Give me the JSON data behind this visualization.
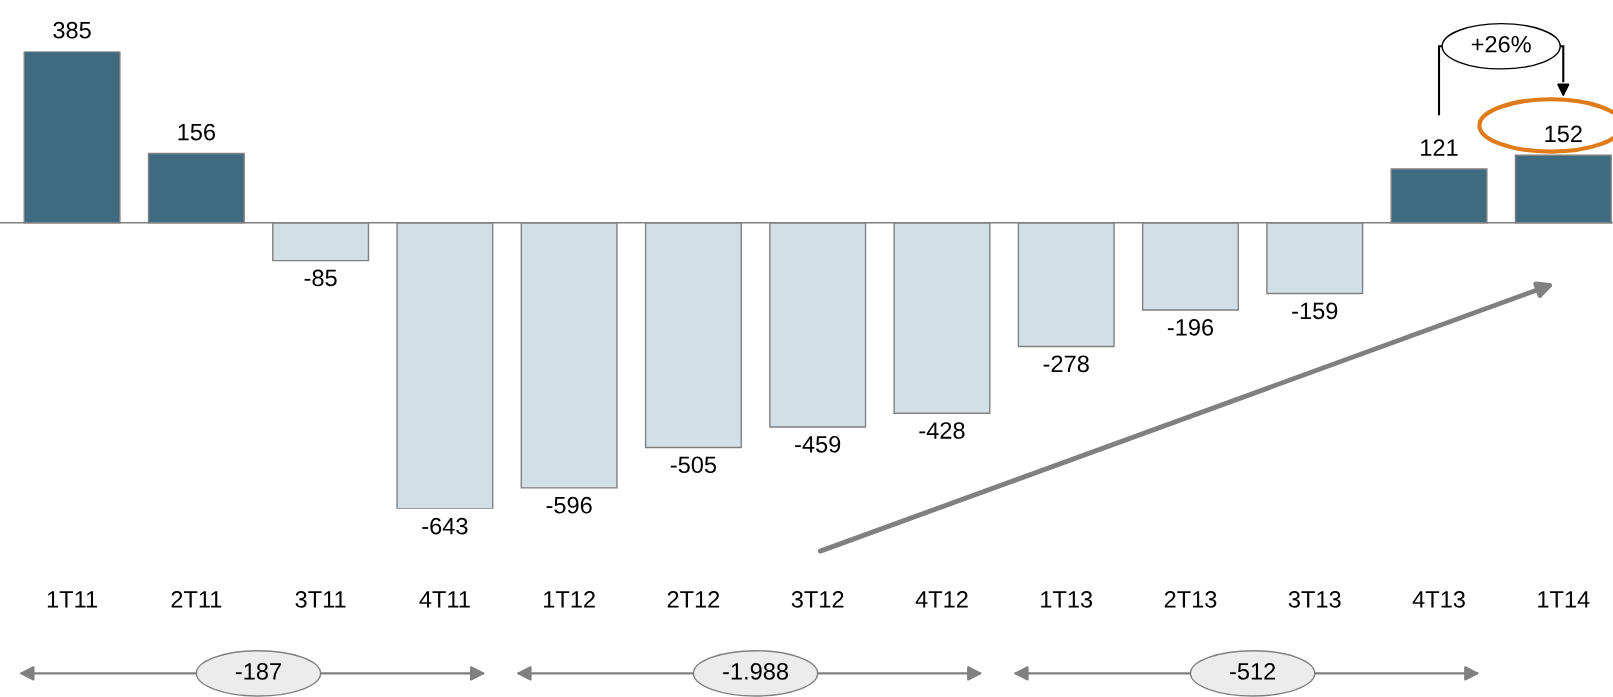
{
  "chart_data": {
    "type": "bar",
    "categories": [
      "1T11",
      "2T11",
      "3T11",
      "4T11",
      "1T12",
      "2T12",
      "3T12",
      "4T12",
      "1T13",
      "2T13",
      "3T13",
      "4T13",
      "1T14"
    ],
    "values": [
      385,
      156,
      -85,
      -643,
      -596,
      -505,
      -459,
      -428,
      -278,
      -196,
      -159,
      121,
      152
    ],
    "colors": [
      "#3e6b80",
      "#3e6b80",
      "#d3dfe6",
      "#d3dfe6",
      "#d3dfe6",
      "#d3dfe6",
      "#d3dfe6",
      "#d3dfe6",
      "#d3dfe6",
      "#d3dfe6",
      "#d3dfe6",
      "#3e6b80",
      "#3e6b80"
    ],
    "data_labels": true,
    "annotations": [
      "+26%",
      "-187",
      "-1.988",
      "-512"
    ]
  }
}
